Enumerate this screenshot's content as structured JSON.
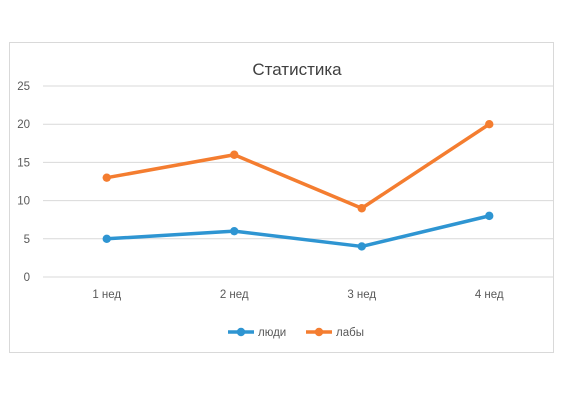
{
  "chart_data": {
    "type": "line",
    "title": "Статистика",
    "categories": [
      "1 нед",
      "2 нед",
      "3 нед",
      "4 нед"
    ],
    "ylim": [
      0,
      25
    ],
    "yticks": [
      0,
      5,
      10,
      15,
      20,
      25
    ],
    "grid": true,
    "legend_position": "bottom",
    "series": [
      {
        "name": "люди",
        "values": [
          5,
          6,
          4,
          8
        ],
        "color": "#2e95d2"
      },
      {
        "name": "лабы",
        "values": [
          13,
          16,
          9,
          20
        ],
        "color": "#f47d30"
      }
    ]
  }
}
